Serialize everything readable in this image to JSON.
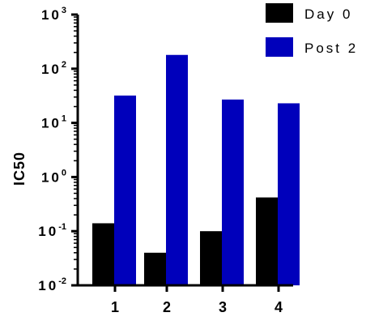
{
  "chart_data": {
    "type": "bar",
    "scale": "log",
    "categories": [
      "1",
      "2",
      "3",
      "4"
    ],
    "series": [
      {
        "name": "Day 0",
        "color": "#000000",
        "values": [
          0.14,
          0.04,
          0.1,
          0.42
        ]
      },
      {
        "name": "Post 2",
        "color": "#0000bb",
        "values": [
          32,
          180,
          27,
          23
        ]
      }
    ],
    "ylabel": "IC50",
    "xlabel": "",
    "ylim": [
      0.01,
      1000
    ],
    "yticks": [
      {
        "base": "10",
        "exp": "-2",
        "value": 0.01
      },
      {
        "base": "10",
        "exp": "-1",
        "value": 0.1
      },
      {
        "base": "10",
        "exp": "0",
        "value": 1
      },
      {
        "base": "10",
        "exp": "1",
        "value": 10
      },
      {
        "base": "10",
        "exp": "2",
        "value": 100
      },
      {
        "base": "10",
        "exp": "3",
        "value": 1000
      }
    ],
    "legend_position": "top-right",
    "grid": false
  }
}
